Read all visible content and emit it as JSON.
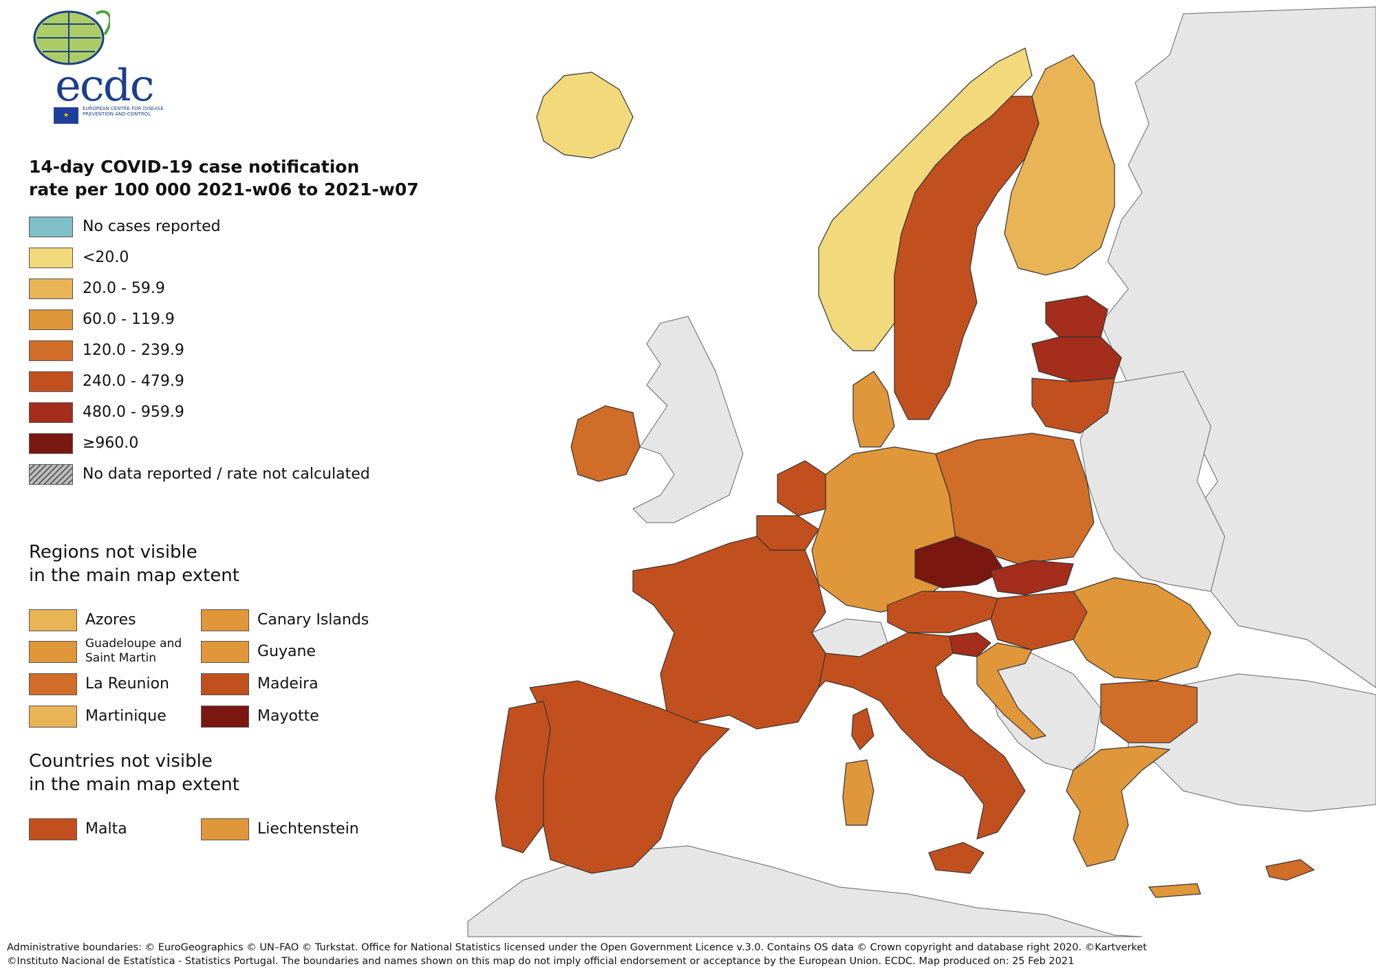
{
  "logo": {
    "text": "ecdc",
    "org_name": "EUROPEAN CENTRE FOR DISEASE PREVENTION AND CONTROL"
  },
  "title": {
    "line1": "14-day COVID-19 case notification",
    "line2": "rate per 100 000 2021-w06 to 2021-w07"
  },
  "legend": [
    {
      "label": "No cases reported",
      "color": "#7fbfc6"
    },
    {
      "label": "<20.0",
      "color": "#f2d97c"
    },
    {
      "label": "20.0 - 59.9",
      "color": "#e8b455"
    },
    {
      "label": "60.0 - 119.9",
      "color": "#df973a"
    },
    {
      "label": "120.0 - 239.9",
      "color": "#d06d28"
    },
    {
      "label": "240.0 - 479.9",
      "color": "#c2501e"
    },
    {
      "label": "480.0 - 959.9",
      "color": "#a42e1b"
    },
    {
      "label": "≥960.0",
      "color": "#7a1710"
    },
    {
      "label": "No data reported / rate not calculated",
      "color": "hatch"
    }
  ],
  "regions_section": {
    "line1": "Regions not visible",
    "line2": "in the main map extent",
    "items": [
      {
        "label": "Azores",
        "color": "#e8b455"
      },
      {
        "label": "Canary Islands",
        "color": "#df973a"
      },
      {
        "label": "Guadeloupe and Saint Martin",
        "color": "#df973a"
      },
      {
        "label": "Guyane",
        "color": "#df973a"
      },
      {
        "label": "La Reunion",
        "color": "#d06d28"
      },
      {
        "label": "Madeira",
        "color": "#c2501e"
      },
      {
        "label": "Martinique",
        "color": "#e8b455"
      },
      {
        "label": "Mayotte",
        "color": "#7a1710"
      }
    ]
  },
  "countries_section": {
    "line1": "Countries not visible",
    "line2": "in the main map extent",
    "items": [
      {
        "label": "Malta",
        "color": "#c2501e"
      },
      {
        "label": "Liechtenstein",
        "color": "#df973a"
      }
    ]
  },
  "credits": {
    "line1": "Administrative boundaries: © EuroGeographics © UN–FAO © Turkstat. Office for National Statistics licensed under the Open Government Licence v.3.0. Contains OS data © Crown copyright and database right 2020. ©Kartverket",
    "line2": "©Instituto Nacional de Estatística - Statistics Portugal. The boundaries and names shown on this map do not imply official endorsement or acceptance by the European Union. ECDC. Map produced on: 25 Feb 2021"
  },
  "map": {
    "sea_color": "#ffffff",
    "non_eu_color": "#e6e6e6",
    "countries": [
      {
        "name": "Iceland",
        "color": "#f2d97c"
      },
      {
        "name": "Norway",
        "color": "#f2d97c"
      },
      {
        "name": "Sweden",
        "color": "#c2501e"
      },
      {
        "name": "Finland",
        "color": "#e8b455"
      },
      {
        "name": "Estonia",
        "color": "#a42e1b"
      },
      {
        "name": "Latvia",
        "color": "#a42e1b"
      },
      {
        "name": "Lithuania",
        "color": "#c2501e"
      },
      {
        "name": "Denmark",
        "color": "#df973a"
      },
      {
        "name": "Ireland",
        "color": "#d06d28"
      },
      {
        "name": "Netherlands",
        "color": "#c2501e"
      },
      {
        "name": "Belgium",
        "color": "#c2501e"
      },
      {
        "name": "Germany",
        "color": "#df973a"
      },
      {
        "name": "Poland",
        "color": "#d06d28"
      },
      {
        "name": "Czechia",
        "color": "#7a1710"
      },
      {
        "name": "Slovakia",
        "color": "#a42e1b"
      },
      {
        "name": "Austria",
        "color": "#c2501e"
      },
      {
        "name": "Hungary",
        "color": "#c2501e"
      },
      {
        "name": "Slovenia",
        "color": "#a42e1b"
      },
      {
        "name": "Croatia",
        "color": "#df973a"
      },
      {
        "name": "Romania",
        "color": "#df973a"
      },
      {
        "name": "Bulgaria",
        "color": "#d06d28"
      },
      {
        "name": "Greece",
        "color": "#df973a"
      },
      {
        "name": "Italy",
        "color": "#c2501e"
      },
      {
        "name": "France",
        "color": "#c2501e"
      },
      {
        "name": "Spain",
        "color": "#c2501e"
      },
      {
        "name": "Portugal",
        "color": "#c2501e"
      },
      {
        "name": "Cyprus",
        "color": "#d06d28"
      },
      {
        "name": "Luxembourg",
        "color": "#c2501e"
      },
      {
        "name": "Sardinia",
        "color": "#df973a"
      },
      {
        "name": "Sicily",
        "color": "#c2501e"
      },
      {
        "name": "Corsica",
        "color": "#c2501e"
      }
    ]
  }
}
